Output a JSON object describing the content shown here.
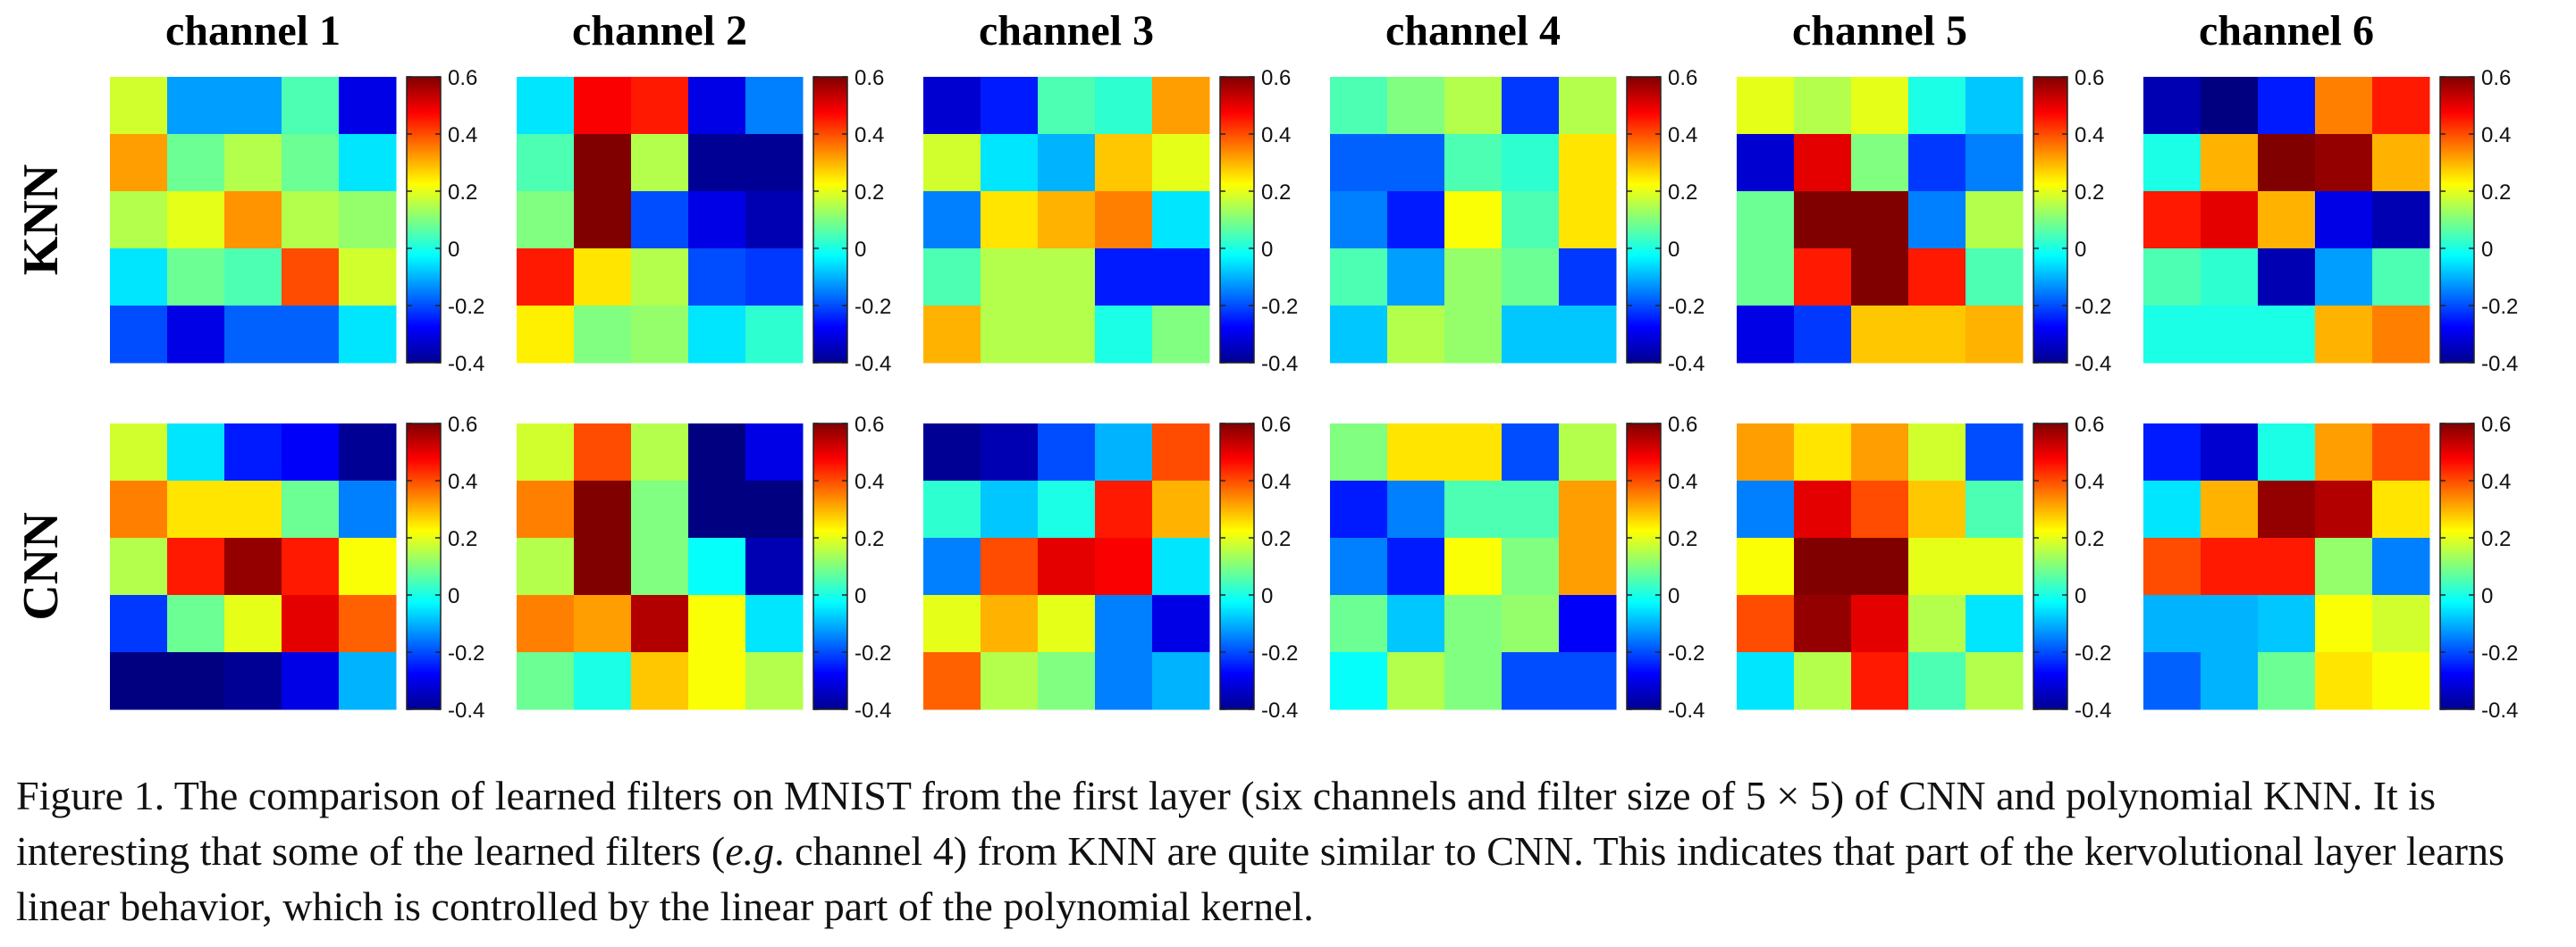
{
  "chart_data": {
    "type": "heatmap",
    "colormap": "jet",
    "clim": [
      -0.4,
      0.6
    ],
    "colorbar_ticks": [
      -0.4,
      -0.2,
      0,
      0.2,
      0.4,
      0.6
    ],
    "colorbar_tick_labels": [
      "-0.4",
      "-0.2",
      "0",
      "0.2",
      "0.4",
      "0.6"
    ],
    "columns": [
      "channel 1",
      "channel 2",
      "channel 3",
      "channel 4",
      "channel 5",
      "channel 6"
    ],
    "rows": [
      "KNN",
      "CNN"
    ],
    "filters": [
      [
        [
          [
            0.18,
            -0.12,
            -0.12,
            0.05,
            -0.3
          ],
          [
            0.32,
            0.08,
            0.15,
            0.08,
            -0.05
          ],
          [
            0.15,
            0.2,
            0.33,
            0.15,
            0.12
          ],
          [
            -0.05,
            0.08,
            0.05,
            0.4,
            0.18
          ],
          [
            -0.2,
            -0.3,
            -0.18,
            -0.18,
            -0.05
          ]
        ],
        [
          [
            -0.05,
            0.48,
            0.45,
            -0.3,
            -0.15
          ],
          [
            0.05,
            0.62,
            0.15,
            -0.38,
            -0.38
          ],
          [
            0.1,
            0.62,
            -0.2,
            -0.3,
            -0.35
          ],
          [
            0.45,
            0.25,
            0.15,
            -0.2,
            -0.22
          ],
          [
            0.24,
            0.1,
            0.12,
            -0.05,
            0.02
          ]
        ],
        [
          [
            -0.32,
            -0.25,
            0.05,
            0.02,
            0.32
          ],
          [
            0.18,
            -0.05,
            -0.1,
            0.28,
            0.2
          ],
          [
            -0.15,
            0.25,
            0.3,
            0.35,
            -0.05
          ],
          [
            0.05,
            0.15,
            0.15,
            -0.25,
            -0.25
          ],
          [
            0.3,
            0.15,
            0.15,
            0.0,
            0.1
          ]
        ],
        [
          [
            0.05,
            0.1,
            0.15,
            -0.22,
            0.15
          ],
          [
            -0.18,
            -0.18,
            0.05,
            0.02,
            0.25
          ],
          [
            -0.15,
            -0.25,
            0.22,
            0.05,
            0.25
          ],
          [
            0.05,
            -0.12,
            0.12,
            0.08,
            -0.22
          ],
          [
            -0.08,
            0.15,
            0.12,
            -0.08,
            -0.08
          ]
        ],
        [
          [
            0.2,
            0.15,
            0.2,
            0.0,
            -0.08
          ],
          [
            -0.32,
            0.5,
            0.1,
            -0.22,
            -0.15
          ],
          [
            0.08,
            0.62,
            0.62,
            -0.15,
            0.15
          ],
          [
            0.08,
            0.45,
            0.62,
            0.45,
            0.05
          ],
          [
            -0.3,
            -0.22,
            0.28,
            0.28,
            0.3
          ]
        ],
        [
          [
            -0.35,
            -0.4,
            -0.25,
            0.35,
            0.45
          ],
          [
            0.0,
            0.3,
            0.62,
            0.58,
            0.3
          ],
          [
            0.45,
            0.5,
            0.3,
            -0.3,
            -0.35
          ],
          [
            0.05,
            0.02,
            -0.35,
            -0.12,
            0.05
          ],
          [
            0.0,
            0.0,
            0.0,
            0.3,
            0.35
          ]
        ]
      ],
      [
        [
          [
            0.18,
            -0.05,
            -0.25,
            -0.28,
            -0.38
          ],
          [
            0.35,
            0.25,
            0.25,
            0.08,
            -0.15
          ],
          [
            0.15,
            0.45,
            0.58,
            0.45,
            0.22
          ],
          [
            -0.22,
            0.08,
            0.2,
            0.5,
            0.38
          ],
          [
            -0.4,
            -0.42,
            -0.38,
            -0.3,
            -0.1
          ]
        ],
        [
          [
            0.18,
            0.4,
            0.15,
            -0.4,
            -0.3
          ],
          [
            0.35,
            0.6,
            0.1,
            -0.4,
            -0.4
          ],
          [
            0.15,
            0.62,
            0.1,
            -0.02,
            -0.35
          ],
          [
            0.35,
            0.32,
            0.55,
            0.22,
            -0.05
          ],
          [
            0.08,
            0.0,
            0.28,
            0.22,
            0.15
          ]
        ],
        [
          [
            -0.38,
            -0.35,
            -0.2,
            -0.1,
            0.4
          ],
          [
            0.02,
            -0.08,
            0.0,
            0.45,
            0.3
          ],
          [
            -0.15,
            0.4,
            0.5,
            0.48,
            -0.05
          ],
          [
            0.2,
            0.3,
            0.2,
            -0.15,
            -0.3
          ],
          [
            0.38,
            0.15,
            0.1,
            -0.15,
            -0.1
          ]
        ],
        [
          [
            0.1,
            0.25,
            0.25,
            -0.2,
            0.15
          ],
          [
            -0.25,
            -0.15,
            0.05,
            0.05,
            0.32
          ],
          [
            -0.15,
            -0.25,
            0.22,
            0.1,
            0.32
          ],
          [
            0.08,
            -0.08,
            0.1,
            0.12,
            -0.28
          ],
          [
            -0.02,
            0.15,
            0.1,
            -0.2,
            -0.2
          ]
        ],
        [
          [
            0.32,
            0.25,
            0.32,
            0.18,
            -0.2
          ],
          [
            -0.15,
            0.5,
            0.4,
            0.28,
            0.05
          ],
          [
            0.22,
            0.62,
            0.62,
            0.2,
            0.2
          ],
          [
            0.4,
            0.58,
            0.5,
            0.15,
            -0.05
          ],
          [
            -0.05,
            0.15,
            0.45,
            0.05,
            0.15
          ]
        ],
        [
          [
            -0.25,
            -0.32,
            0.0,
            0.32,
            0.4
          ],
          [
            -0.05,
            0.3,
            0.58,
            0.55,
            0.25
          ],
          [
            0.4,
            0.45,
            0.45,
            0.12,
            -0.15
          ],
          [
            -0.1,
            -0.1,
            -0.08,
            0.22,
            0.18
          ],
          [
            -0.18,
            -0.1,
            0.08,
            0.25,
            0.22
          ]
        ]
      ]
    ]
  },
  "caption": {
    "text_a": "Figure 1. The comparison of learned filters on MNIST from the first layer (six channels and filter size of 5 × 5) of CNN and polynomial KNN. It is interesting that some of the learned filters (",
    "eg": "e.g",
    "text_b": ". channel 4) from KNN are quite similar to CNN. This indicates that part of the kervolutional layer learns linear behavior, which is controlled by the linear part of the polynomial kernel."
  }
}
